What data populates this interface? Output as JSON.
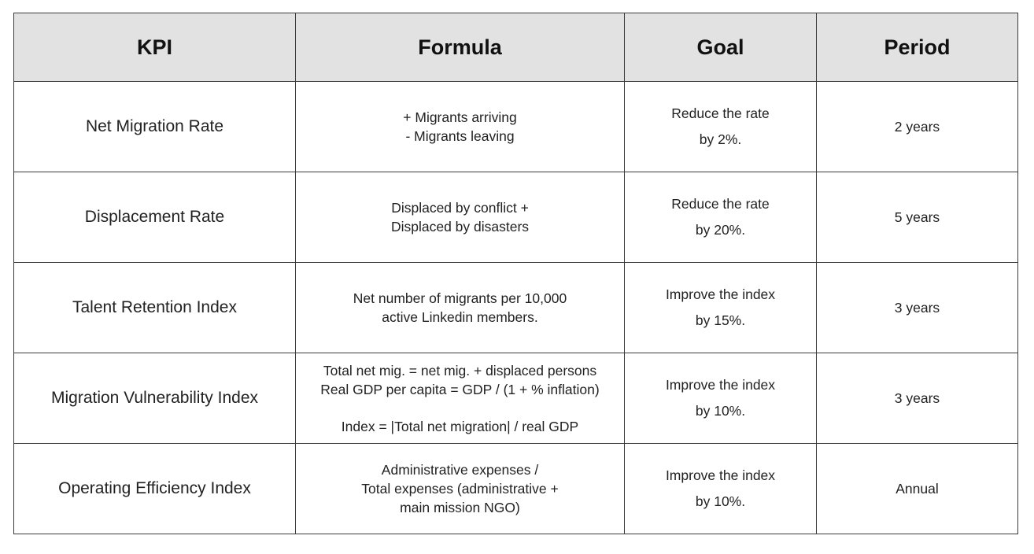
{
  "table": {
    "headers": {
      "kpi": "KPI",
      "formula": "Formula",
      "goal": "Goal",
      "period": "Period"
    },
    "rows": [
      {
        "kpi": "Net Migration Rate",
        "formula": [
          "+ Migrants arriving",
          "- Migrants leaving"
        ],
        "goal": [
          "Reduce the rate",
          "by 2%."
        ],
        "period": "2 years"
      },
      {
        "kpi": "Displacement Rate",
        "formula": [
          "Displaced by conflict +",
          "Displaced by disasters"
        ],
        "goal": [
          "Reduce the rate",
          "by 20%."
        ],
        "period": "5 years"
      },
      {
        "kpi": "Talent Retention Index",
        "formula": [
          "Net number of migrants per 10,000",
          "active Linkedin members."
        ],
        "goal": [
          "Improve the index",
          "by 15%."
        ],
        "period": "3 years"
      },
      {
        "kpi": "Migration Vulnerability Index",
        "formula": [
          "Total net mig. = net mig. + displaced persons",
          "Real GDP per capita = GDP / (1 + % inflation)",
          "Index = |Total net migration| / real GDP"
        ],
        "goal": [
          "Improve the index",
          "by 10%."
        ],
        "period": "3 years"
      },
      {
        "kpi": "Operating Efficiency Index",
        "formula": [
          "Administrative expenses /",
          "Total expenses (administrative +",
          "main mission NGO)"
        ],
        "goal": [
          "Improve the index",
          "by 10%."
        ],
        "period": "Annual"
      }
    ]
  }
}
